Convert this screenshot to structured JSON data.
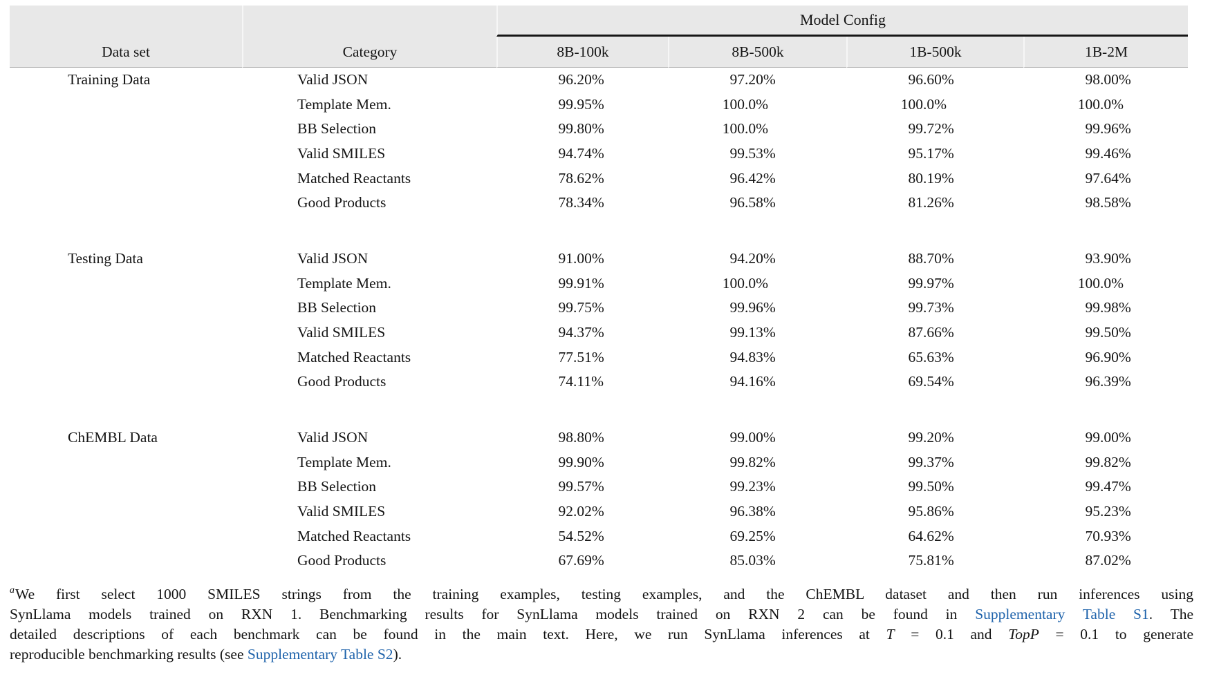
{
  "table": {
    "span_header": "Model Config",
    "columns": [
      "Data set",
      "Category",
      "8B-100k",
      "8B-500k",
      "1B-500k",
      "1B-2M"
    ],
    "groups": [
      {
        "dataset": "Training Data",
        "rows": [
          {
            "category": "Valid JSON",
            "values": [
              "96.20%",
              "97.20%",
              "96.60%",
              "98.00%"
            ]
          },
          {
            "category": "Template Mem.",
            "values": [
              "99.95%",
              "100.0%",
              "100.0%",
              "100.0%"
            ]
          },
          {
            "category": "BB Selection",
            "values": [
              "99.80%",
              "100.0%",
              "99.72%",
              "99.96%"
            ]
          },
          {
            "category": "Valid SMILES",
            "values": [
              "94.74%",
              "99.53%",
              "95.17%",
              "99.46%"
            ]
          },
          {
            "category": "Matched Reactants",
            "values": [
              "78.62%",
              "96.42%",
              "80.19%",
              "97.64%"
            ]
          },
          {
            "category": "Good Products",
            "values": [
              "78.34%",
              "96.58%",
              "81.26%",
              "98.58%"
            ]
          }
        ]
      },
      {
        "dataset": "Testing Data",
        "rows": [
          {
            "category": "Valid JSON",
            "values": [
              "91.00%",
              "94.20%",
              "88.70%",
              "93.90%"
            ]
          },
          {
            "category": "Template Mem.",
            "values": [
              "99.91%",
              "100.0%",
              "99.97%",
              "100.0%"
            ]
          },
          {
            "category": "BB Selection",
            "values": [
              "99.75%",
              "99.96%",
              "99.73%",
              "99.98%"
            ]
          },
          {
            "category": "Valid SMILES",
            "values": [
              "94.37%",
              "99.13%",
              "87.66%",
              "99.50%"
            ]
          },
          {
            "category": "Matched Reactants",
            "values": [
              "77.51%",
              "94.83%",
              "65.63%",
              "96.90%"
            ]
          },
          {
            "category": "Good Products",
            "values": [
              "74.11%",
              "94.16%",
              "69.54%",
              "96.39%"
            ]
          }
        ]
      },
      {
        "dataset": "ChEMBL Data",
        "rows": [
          {
            "category": "Valid JSON",
            "values": [
              "98.80%",
              "99.00%",
              "99.20%",
              "99.00%"
            ]
          },
          {
            "category": "Template Mem.",
            "values": [
              "99.90%",
              "99.82%",
              "99.37%",
              "99.82%"
            ]
          },
          {
            "category": "BB Selection",
            "values": [
              "99.57%",
              "99.23%",
              "99.50%",
              "99.47%"
            ]
          },
          {
            "category": "Valid SMILES",
            "values": [
              "92.02%",
              "96.38%",
              "95.86%",
              "95.23%"
            ]
          },
          {
            "category": "Matched Reactants",
            "values": [
              "54.52%",
              "69.25%",
              "64.62%",
              "70.93%"
            ]
          },
          {
            "category": "Good Products",
            "values": [
              "67.69%",
              "85.03%",
              "75.81%",
              "87.02%"
            ]
          }
        ]
      }
    ]
  },
  "footnote": {
    "lines": [
      [
        {
          "style": "sup",
          "text": "a"
        },
        {
          "style": "plain",
          "text": "We first select 1000 SMILES strings from the training examples, testing examples, and the ChEMBL dataset and then run inferences using"
        }
      ],
      [
        {
          "style": "plain",
          "text": "SynLlama models trained on RXN 1. Benchmarking results for SynLlama models trained on RXN 2 can be found in "
        },
        {
          "style": "link",
          "name": "supplementary-table-s1-link",
          "text": "Supplementary Table S1"
        },
        {
          "style": "plain",
          "text": ". The"
        }
      ],
      [
        {
          "style": "plain",
          "text": "detailed descriptions of each benchmark can be found in the main text. Here, we run SynLlama inferences at "
        },
        {
          "style": "italic",
          "text": "T"
        },
        {
          "style": "plain",
          "text": " = 0.1 and "
        },
        {
          "style": "italic",
          "text": "TopP"
        },
        {
          "style": "plain",
          "text": " = 0.1 to generate"
        }
      ],
      [
        {
          "style": "plain",
          "text": "reproducible benchmarking results (see "
        },
        {
          "style": "link",
          "name": "supplementary-table-s2-link",
          "text": "Supplementary Table S2"
        },
        {
          "style": "plain",
          "text": ")."
        }
      ]
    ]
  },
  "colors": {
    "header_bg": "#e8e8e8",
    "rule": "#161616",
    "link": "#1f63ab",
    "text": "#151515"
  }
}
